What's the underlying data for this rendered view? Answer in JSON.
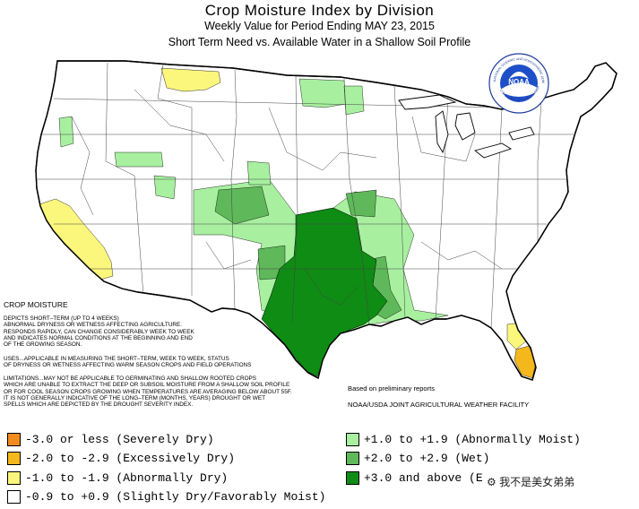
{
  "header": {
    "title": "Crop Moisture Index by Division",
    "subtitle": "Weekly Value for Period Ending MAY 23, 2015",
    "subtitle2": "Short Term Need vs. Available Water in a Shallow Soil Profile"
  },
  "logo": {
    "name": "NOAA",
    "ring_text": "NATIONAL OCEANIC AND ATMOSPHERIC ADMINISTRATION",
    "ring_text_bottom": "U.S. DEPARTMENT OF COMMERCE"
  },
  "notes": {
    "heading": "CROP MOISTURE",
    "depicts": "DEPICTS SHORT–TERM (UP TO 4 WEEKS)\nABNORMAL DRYNESS OR WETNESS AFFECTING AGRICULTURE.\nRESPONDS RAPIDLY, CAN CHANGE CONSIDERABLY WEEK TO WEEK\nAND INDICATES NORMAL CONDITIONS AT THE BEGINNING AND END\nOF THE GROWING SEASON.",
    "uses": "USES...APPLICABLE IN MEASURING THE SHORT–TERM, WEEK TO WEEK, STATUS\nOF DRYNESS OR WETNESS AFFECTING WARM SEASON CROPS AND FIELD OPERATIONS",
    "limitations": "LIMITATIONS...MAY NOT BE APPLICABLE TO GERMINATING AND SHALLOW ROOTED CROPS\nWHICH ARE UNABLE TO EXTRACT THE DEEP OR SUBSOIL MOISTURE FROM A SHALLOW SOIL PROFILE\nOR FOR COOL SEASON CROPS GROWING WHEN TEMPERATURES ARE AVERAGING BELOW ABOUT 55F.\nIT IS NOT GENERALLY INDICATIVE OF THE LONG–TERM (MONTHS, YEARS) DROUGHT OR WET\nSPELLS WHICH ARE DEPICTED BY THE DROUGHT SEVERITY INDEX.",
    "prelim": "Based on preliminary reports",
    "facility": "NOAA/USDA JOINT AGRICULTURAL WEATHER FACILITY"
  },
  "colors": {
    "severely_dry": "#f08c1e",
    "excessively_dry": "#f5b81c",
    "abnormally_dry": "#fbf77d",
    "slightly_dry": "#ffffff",
    "abnormally_moist": "#a8f0a0",
    "wet": "#5fb85a",
    "excessively_wet": "#0e8c14"
  },
  "legend": [
    {
      "label": "-3.0 or less (Severely Dry)",
      "color": "#f08c1e"
    },
    {
      "label": "-2.0 to -2.9 (Excessively Dry)",
      "color": "#f5b81c"
    },
    {
      "label": "-1.0 to -1.9 (Abnormally Dry)",
      "color": "#fbf77d"
    },
    {
      "label": "-0.9 to +0.9 (Slightly Dry/Favorably Moist)",
      "color": "#ffffff"
    },
    {
      "label": "+1.0 to +1.9 (Abnormally Moist)",
      "color": "#a8f0a0"
    },
    {
      "label": "+2.0 to +2.9 (Wet)",
      "color": "#5fb85a"
    },
    {
      "label": "+3.0 and above (E",
      "color": "#0e8c14"
    }
  ],
  "watermark": "⚙ 我不是美女弟弟"
}
